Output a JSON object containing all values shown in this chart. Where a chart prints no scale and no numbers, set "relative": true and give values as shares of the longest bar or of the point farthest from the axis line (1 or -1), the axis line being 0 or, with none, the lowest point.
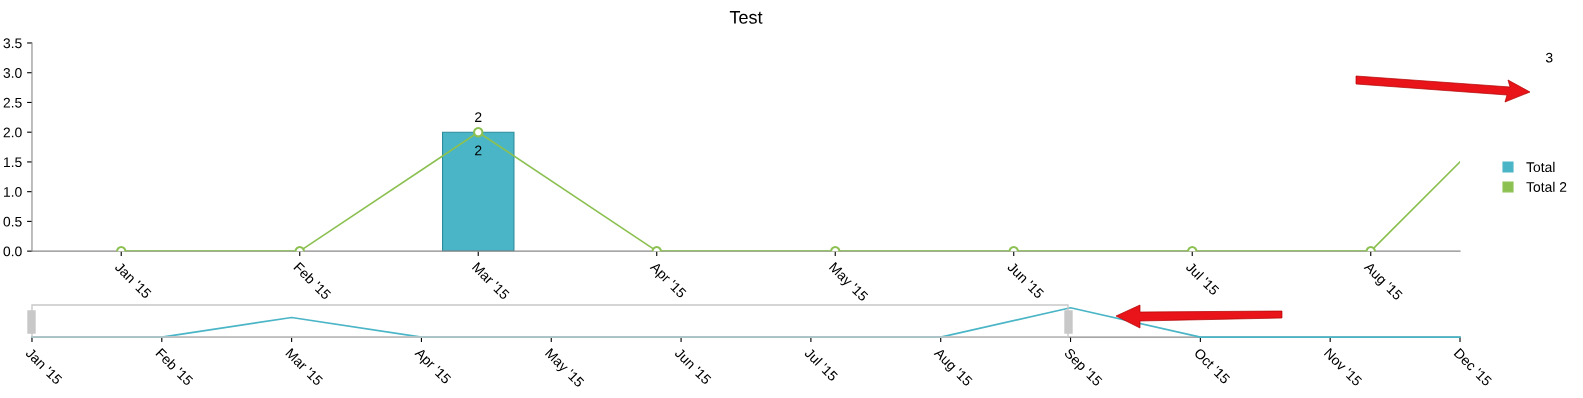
{
  "chart_data": [
    {
      "type": "bar",
      "title": "Test",
      "categories": [
        "Jan '15",
        "Feb '15",
        "Mar '15",
        "Apr '15",
        "May '15",
        "Jun '15",
        "Jul '15",
        "Aug '15",
        null
      ],
      "series": [
        {
          "name": "Total",
          "type": "bar",
          "color": "#4ab5c6",
          "values": [
            0,
            0,
            2,
            0,
            0,
            0,
            0,
            0,
            null
          ],
          "value_labels": [
            null,
            null,
            "2",
            null,
            null,
            null,
            null,
            null,
            null
          ]
        },
        {
          "name": "Total 2",
          "type": "line",
          "color": "#8cc152",
          "values": [
            0,
            0,
            2,
            0,
            0,
            0,
            0,
            0,
            3
          ],
          "value_labels": [
            null,
            null,
            "2",
            null,
            null,
            null,
            null,
            null,
            "3"
          ]
        }
      ],
      "ylim": [
        0,
        3.5
      ],
      "yticks": [
        {
          "value": 0,
          "label": "0.0"
        },
        {
          "value": 0.5,
          "label": "0.5"
        },
        {
          "value": 1,
          "label": "1.0"
        },
        {
          "value": 1.5,
          "label": "1.5"
        },
        {
          "value": 2,
          "label": "2.0"
        },
        {
          "value": 2.5,
          "label": "2.5"
        },
        {
          "value": 3,
          "label": "3.0"
        },
        {
          "value": 3.5,
          "label": "3.5"
        }
      ],
      "marker": "circle",
      "legend": "right",
      "grid": false
    },
    {
      "type": "line",
      "relative": true,
      "categories": [
        "Jan '15",
        "Feb '15",
        "Mar '15",
        "Apr '15",
        "May '15",
        "Jun '15",
        "Jul '15",
        "Aug '15",
        "Sep '15",
        "Oct '15",
        "Nov '15",
        "Dec '15"
      ],
      "series": [
        {
          "color": "#4ab5c6",
          "values": [
            0,
            0,
            0.67,
            0,
            0,
            0,
            0,
            0,
            1,
            0,
            0,
            0
          ]
        }
      ],
      "marker": "none",
      "grid": false
    }
  ]
}
